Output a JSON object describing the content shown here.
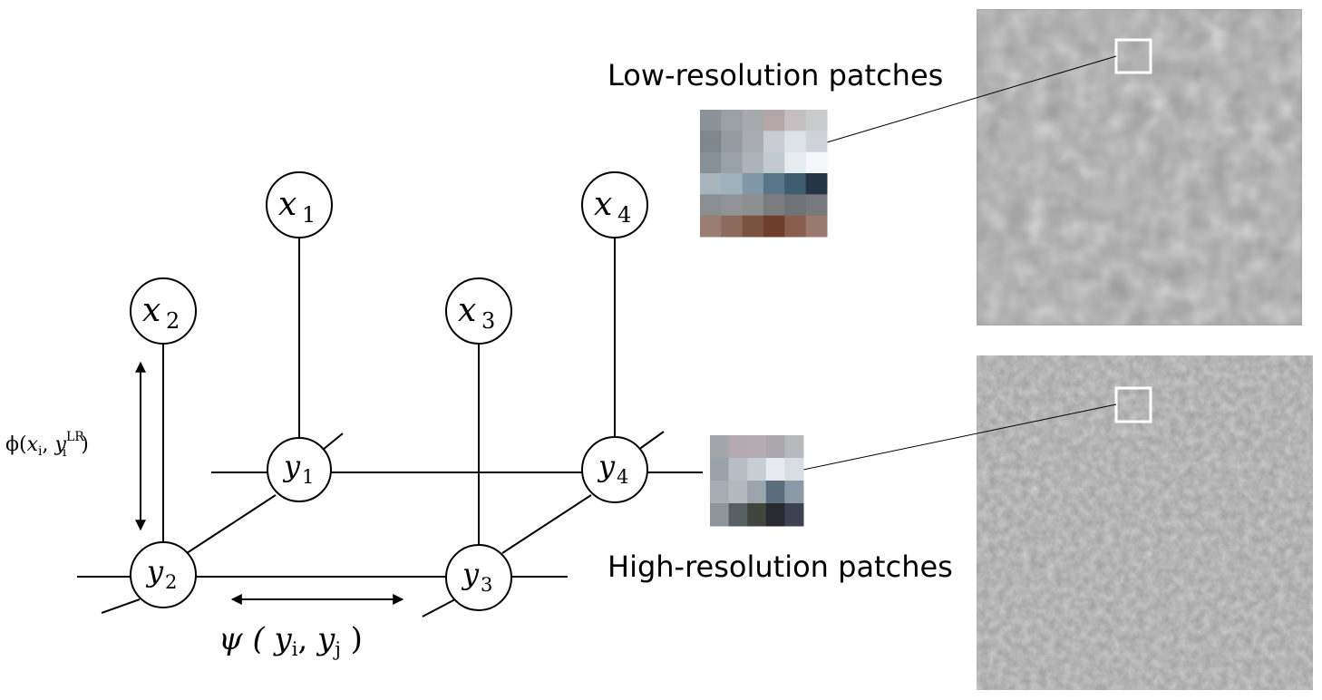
{
  "nodes": {
    "x1": {
      "base": "x",
      "sub": "1"
    },
    "x2": {
      "base": "x",
      "sub": "2"
    },
    "x3": {
      "base": "x",
      "sub": "3"
    },
    "x4": {
      "base": "x",
      "sub": "4"
    },
    "y1": {
      "base": "y",
      "sub": "1"
    },
    "y2": {
      "base": "y",
      "sub": "2"
    },
    "y3": {
      "base": "y",
      "sub": "3"
    },
    "y4": {
      "base": "y",
      "sub": "4"
    }
  },
  "labels": {
    "phi": {
      "fn": "ϕ(",
      "x": "x",
      "xsub": "i",
      "comma": ", ",
      "y": "y",
      "ysub": "i",
      "ysup": "LR",
      "close": ")"
    },
    "psi": {
      "fn": "ψ ( ",
      "a": "y",
      "asub": "i",
      "comma": ", ",
      "b": "y",
      "bsub": "j",
      "close": " )"
    }
  },
  "captions": {
    "low_res": "Low-resolution patches",
    "high_res": "High-resolution patches"
  },
  "patches": {
    "low_res_colors": [
      [
        "#8a9298",
        "#9aa0a6",
        "#a7a9ad",
        "#b3a7a8",
        "#c4c0c1",
        "#c8cacc"
      ],
      [
        "#7f868c",
        "#959ba1",
        "#a9acb1",
        "#c9ccd3",
        "#dde1e8",
        "#cfd3d9"
      ],
      [
        "#889097",
        "#9aa1a8",
        "#adb3b9",
        "#c3c9d0",
        "#e6ebf0",
        "#f4f6f8"
      ],
      [
        "#a8b4bc",
        "#9fb1bb",
        "#7f97a6",
        "#57768a",
        "#3f5d71",
        "#253545"
      ],
      [
        "#8a8e92",
        "#909497",
        "#8e8f91",
        "#7a7c80",
        "#6f7276",
        "#767a7e"
      ],
      [
        "#9a7e72",
        "#8c6a5c",
        "#7a5240",
        "#6d3f2b",
        "#8a5e4c",
        "#9a7a6e"
      ]
    ],
    "high_res_colors": [
      [
        "#a3a6ab",
        "#b2aab0",
        "#b4acb2",
        "#aaa8ad",
        "#b7b9bd"
      ],
      [
        "#9ba2a9",
        "#b8bdc3",
        "#c9ced4",
        "#e6e9ee",
        "#d8dde2"
      ],
      [
        "#a6adb3",
        "#b3b9bf",
        "#9ca5ac",
        "#5a6d7c",
        "#8b9aa6"
      ],
      [
        "#8e9499",
        "#585f62",
        "#40463f",
        "#272b2f",
        "#3c4250"
      ]
    ],
    "low_res_texture_colors": [
      "#9b9b9b",
      "#dcdcdc",
      "#6f6f6f"
    ],
    "high_res_texture_colors": [
      "#9c9c9c",
      "#e2e2e2",
      "#6a6a6a"
    ]
  }
}
